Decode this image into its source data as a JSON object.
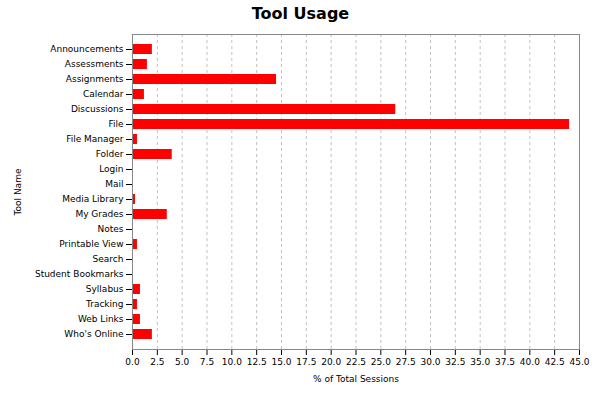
{
  "chart_data": {
    "type": "bar",
    "orientation": "horizontal",
    "title": "Tool Usage",
    "xlabel": "% of Total Sessions",
    "ylabel": "Tool Name",
    "categories": [
      "Announcements",
      "Assessments",
      "Assignments",
      "Calendar",
      "Discussions",
      "File",
      "File Manager",
      "Folder",
      "Login",
      "Mail",
      "Media Library",
      "My Grades",
      "Notes",
      "Printable View",
      "Search",
      "Student Bookmarks",
      "Syllabus",
      "Tracking",
      "Web Links",
      "Who's Online"
    ],
    "values": [
      2.0,
      1.5,
      14.5,
      1.2,
      26.5,
      44.0,
      0.5,
      4.0,
      0.1,
      0.1,
      0.3,
      3.5,
      0.1,
      0.5,
      0.1,
      0.1,
      0.8,
      0.5,
      0.8,
      2.0
    ],
    "color": "#ff0000",
    "xlim": [
      0,
      45.0
    ],
    "xticks": [
      {
        "value": 0,
        "label": "0.0"
      },
      2.5,
      {
        "value": 5,
        "label": "5.0"
      },
      7.5,
      {
        "value": 10,
        "label": "10.0"
      },
      12.5,
      {
        "value": 15,
        "label": "15.0"
      },
      17.5,
      {
        "value": 20,
        "label": "20.0"
      },
      22.5,
      {
        "value": 25,
        "label": "25.0"
      },
      27.5,
      {
        "value": 30,
        "label": "30.0"
      },
      32.5,
      {
        "value": 35,
        "label": "35.0"
      },
      37.5,
      {
        "value": 40,
        "label": "40.0"
      },
      42.5,
      {
        "value": 45,
        "label": "45.0"
      }
    ],
    "grid": true
  }
}
